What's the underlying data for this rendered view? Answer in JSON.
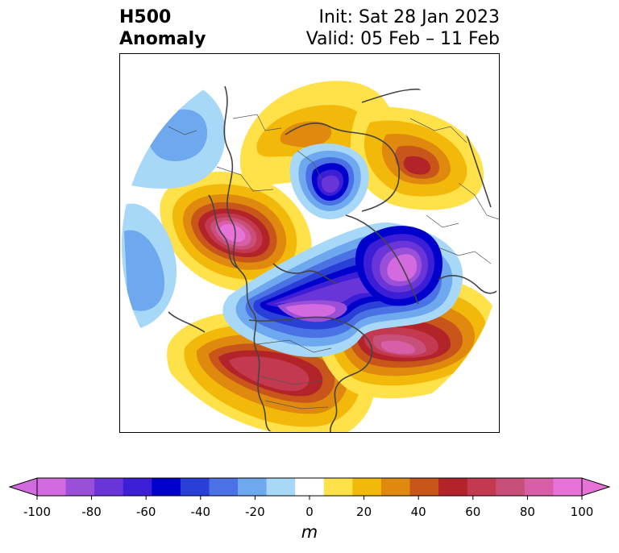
{
  "title": {
    "left_line1": "H500",
    "left_line2": "Anomaly",
    "right_line1": "Init: Sat 28 Jan 2023",
    "right_line2": "Valid: 05 Feb – 11 Feb"
  },
  "colorbar": {
    "unit": "m",
    "tick_labels": [
      "-100",
      "-80",
      "-60",
      "-40",
      "-20",
      "0",
      "20",
      "40",
      "60",
      "80",
      "100"
    ],
    "levels": [
      -100,
      -90,
      -80,
      -70,
      -60,
      -50,
      -40,
      -30,
      -20,
      -10,
      10,
      20,
      30,
      40,
      50,
      60,
      70,
      80,
      90,
      100
    ],
    "colors": [
      "#d46ae0",
      "#9a4fd8",
      "#6a35d8",
      "#3b1ed6",
      "#0000cc",
      "#2a3fd8",
      "#4a72e4",
      "#6ea8ee",
      "#a8d8f8",
      "#ffffff",
      "#ffe14a",
      "#f3b90a",
      "#df8a0e",
      "#c8561a",
      "#b2242a",
      "#c23950",
      "#c84f7a",
      "#d85ea8",
      "#e873d8"
    ],
    "under_color": "#d46ae0",
    "over_color": "#e873d8"
  },
  "map_colors": {
    "coast": "#444444",
    "border": "#555555"
  }
}
